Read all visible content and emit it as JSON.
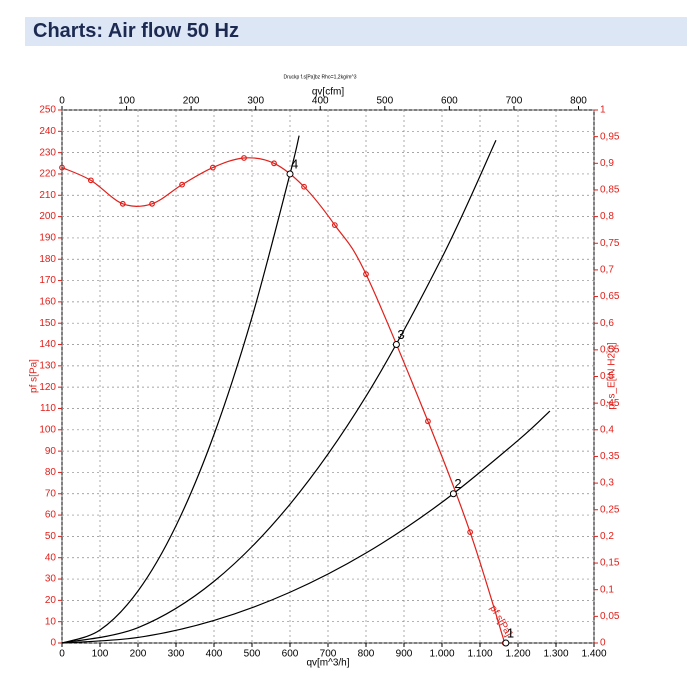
{
  "header": {
    "title": "Charts: Air flow 50 Hz"
  },
  "chart_data": {
    "type": "line",
    "title": "Druckp f.s[Pa]bz Rho=1,2kg/m^3",
    "xlabel": "qv[m^3/h]",
    "x2label": "qv[cfm]",
    "ylabel": "pf s[Pa]",
    "y2label": "pf s_E[IN H2O]",
    "xlim": [
      0,
      1400
    ],
    "xticks": [
      0,
      100,
      200,
      300,
      400,
      500,
      600,
      700,
      800,
      900,
      {
        "value": 1000,
        "label": "1.000"
      },
      {
        "value": 1100,
        "label": "1.100"
      },
      {
        "value": 1200,
        "label": "1.200"
      },
      {
        "value": 1300,
        "label": "1.300"
      },
      {
        "value": 1400,
        "label": "1.400"
      }
    ],
    "x2lim": [
      0,
      824
    ],
    "x2ticks": [
      0,
      100,
      200,
      300,
      400,
      500,
      600,
      700,
      800
    ],
    "ylim": [
      0,
      250
    ],
    "yticks": [
      0,
      10,
      20,
      30,
      40,
      50,
      60,
      70,
      80,
      90,
      100,
      110,
      120,
      130,
      140,
      150,
      160,
      170,
      180,
      190,
      200,
      210,
      220,
      230,
      240,
      250
    ],
    "y2lim": [
      0,
      1
    ],
    "y2ticks": [
      0,
      {
        "value": 0.05,
        "label": "0,05"
      },
      {
        "value": 0.1,
        "label": "0,1"
      },
      {
        "value": 0.15,
        "label": "0,15"
      },
      {
        "value": 0.2,
        "label": "0,2"
      },
      {
        "value": 0.25,
        "label": "0,25"
      },
      {
        "value": 0.3,
        "label": "0,3"
      },
      {
        "value": 0.35,
        "label": "0,35"
      },
      {
        "value": 0.4,
        "label": "0,4"
      },
      {
        "value": 0.45,
        "label": "0,45"
      },
      {
        "value": 0.5,
        "label": "0,5"
      },
      {
        "value": 0.55,
        "label": "0,55"
      },
      {
        "value": 0.6,
        "label": "0,6"
      },
      {
        "value": 0.65,
        "label": "0,65"
      },
      {
        "value": 0.7,
        "label": "0,7"
      },
      {
        "value": 0.75,
        "label": "0,75"
      },
      {
        "value": 0.8,
        "label": "0,8"
      },
      {
        "value": 0.85,
        "label": "0,85"
      },
      {
        "value": 0.9,
        "label": "0,9"
      },
      {
        "value": 0.95,
        "label": "0,95"
      },
      1
    ],
    "grid": true,
    "series": [
      {
        "name": "pf s[Pa]",
        "color": "#e0201b",
        "markers": true,
        "x": [
          0,
          76,
          160,
          237,
          316,
          397,
          479,
          558,
          637,
          718,
          800,
          963,
          1074,
          1165
        ],
        "values": [
          223,
          217,
          206,
          206,
          215,
          223,
          227.5,
          225,
          214,
          196,
          173,
          104,
          52,
          0
        ]
      },
      {
        "color": "#000000",
        "markers": false,
        "x": [
          0,
          100,
          200,
          300,
          400,
          500,
          600,
          624
        ],
        "values": [
          0,
          6.1,
          24.4,
          55,
          97.8,
          152.8,
          220,
          238
        ]
      },
      {
        "color": "#000000",
        "markers": false,
        "x": [
          0,
          200,
          400,
          600,
          800,
          1000,
          1142
        ],
        "values": [
          0,
          7.2,
          28.9,
          65.1,
          115.7,
          180.8,
          235.8
        ]
      },
      {
        "color": "#000000",
        "markers": false,
        "x": [
          0,
          200,
          400,
          600,
          800,
          1000,
          1200,
          1284
        ],
        "values": [
          0,
          2.6,
          10.6,
          23.8,
          42.2,
          66,
          95,
          108.8
        ]
      }
    ],
    "operating_points": [
      {
        "label": "4",
        "x": 600,
        "y": 220
      },
      {
        "label": "3",
        "x": 880,
        "y": 140
      },
      {
        "label": "2",
        "x": 1030,
        "y": 70
      },
      {
        "label": "1",
        "x": 1168,
        "y": 0
      }
    ]
  }
}
